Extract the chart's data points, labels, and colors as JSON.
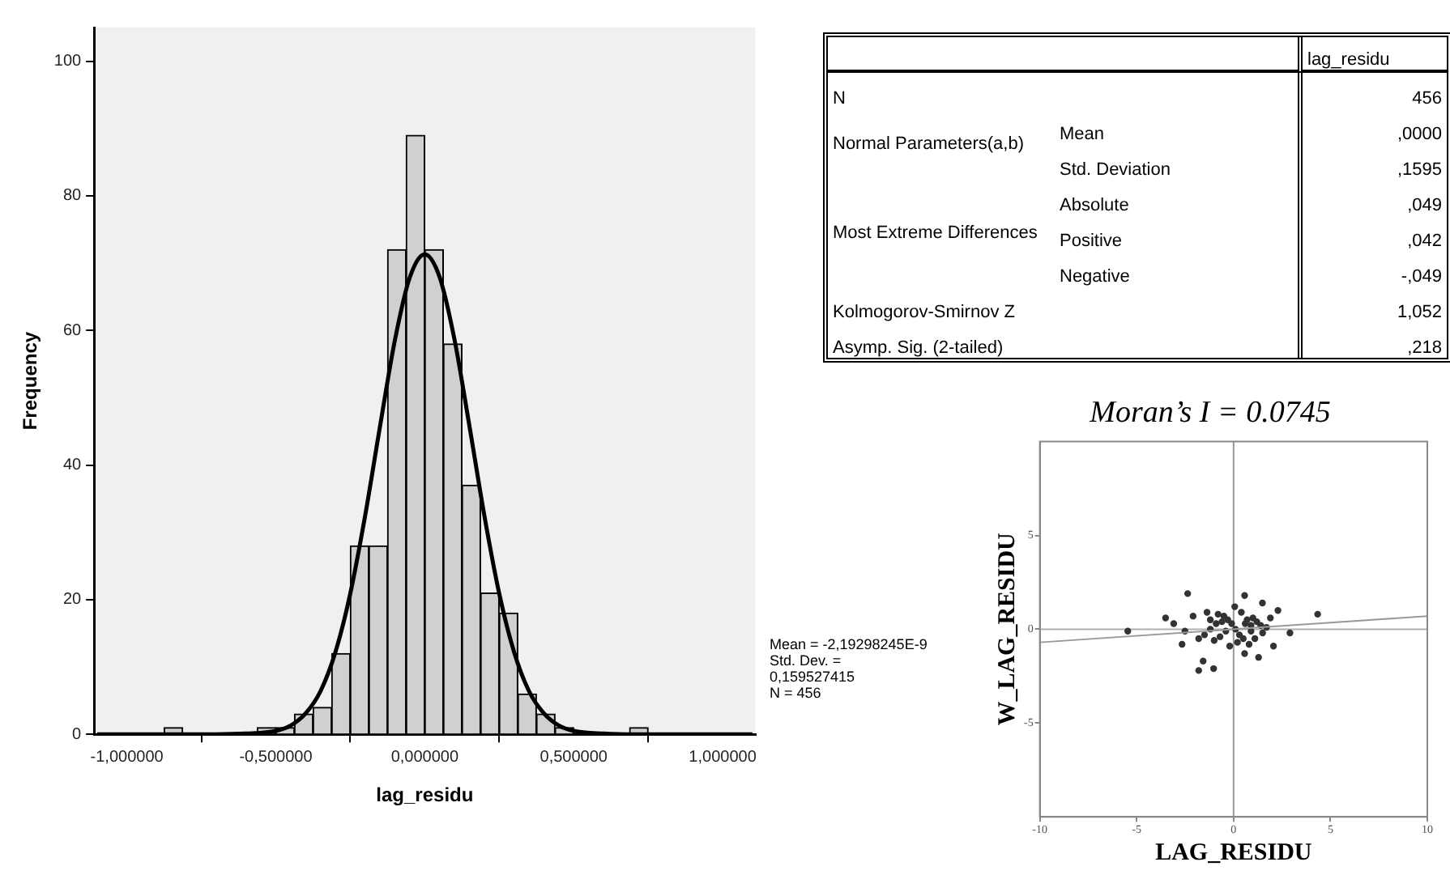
{
  "chart_data": [
    {
      "type": "histogram",
      "xlabel": "lag_residu",
      "ylabel": "Frequency",
      "bins": [
        -0.875,
        -0.8125,
        -0.75,
        -0.6875,
        -0.625,
        -0.5625,
        -0.5,
        -0.4375,
        -0.375,
        -0.3125,
        -0.25,
        -0.1875,
        -0.125,
        -0.0625,
        0,
        0.0625,
        0.125,
        0.1875,
        0.25,
        0.3125,
        0.375,
        0.4375,
        0.5,
        0.5625,
        0.625,
        0.6875,
        0.75
      ],
      "values": [
        1,
        0,
        0,
        0,
        0,
        1,
        1,
        3,
        4,
        12,
        28,
        28,
        72,
        89,
        72,
        58,
        37,
        21,
        18,
        6,
        3,
        1,
        0,
        0,
        0,
        1
      ],
      "color": "#d0d0d0",
      "series": [
        {
          "type": "line",
          "color": "#000000",
          "x": [
            -1.1,
            -0.8,
            -0.7,
            -0.6,
            -0.5,
            -0.45,
            -0.4,
            -0.35,
            -0.3,
            -0.25,
            -0.2,
            -0.15,
            -0.1,
            -0.05,
            0,
            0.05,
            0.1,
            0.15,
            0.2,
            0.25,
            0.3,
            0.35,
            0.4,
            0.45,
            0.5,
            0.6,
            0.7,
            0.8,
            1.1
          ],
          "values": [
            0,
            0,
            0,
            0.1,
            0.5,
            1.3,
            3.1,
            6.4,
            12.2,
            20.9,
            32.5,
            45.8,
            58.6,
            67.9,
            71.3,
            67.9,
            58.6,
            45.8,
            32.5,
            20.9,
            12.2,
            6.4,
            3.1,
            1.3,
            0.5,
            0.1,
            0,
            0,
            0
          ]
        }
      ],
      "xlim": [
        -1.11,
        1.11
      ],
      "xticks": [
        {
          "value": -1,
          "label": "-1,000000"
        },
        {
          "value": -0.5,
          "label": "-0,500000"
        },
        {
          "value": 0,
          "label": "0,000000"
        },
        {
          "value": 0.5,
          "label": "0,500000"
        },
        {
          "value": 1,
          "label": "1,000000"
        }
      ],
      "ylim": [
        0,
        105
      ],
      "yticks": [
        0,
        20,
        40,
        60,
        80,
        100
      ],
      "grid": false,
      "legend": false,
      "annotations": [
        "Mean = -2,19298245E-9",
        "Std. Dev. =",
        "0,159527415",
        "N = 456"
      ]
    },
    {
      "type": "other",
      "annotations": [
        "lag_residu",
        "N",
        "456",
        "Normal Parameters(a,b)",
        "Mean",
        ",0000",
        "Std. Deviation",
        ",1595",
        "Most Extreme Differences",
        "Absolute",
        ",049",
        "Positive",
        ",042",
        "Negative",
        "-,049",
        "Kolmogorov-Smirnov Z",
        "1,052",
        "Asymp. Sig. (2-tailed)",
        ",218"
      ]
    },
    {
      "type": "scatter",
      "title": "Moran’s I = 0.0745",
      "xlabel": "LAG_RESIDU",
      "ylabel": "W_LAG_RESIDU",
      "series": [
        {
          "type": "scatter",
          "color": "#333333",
          "marker": "circle",
          "x": [
            -5.46,
            -2.37,
            -3.51,
            -3.09,
            4.34,
            0.57,
            1.49,
            2.29,
            2.91,
            -1.8,
            -1.03,
            -1.57,
            1.29,
            0.57,
            2.06,
            -2.66,
            -2.09,
            -1.37,
            0.06,
            -2.51,
            -1.2,
            -0.9,
            -0.3,
            0.6,
            0.9,
            1.2,
            1.5,
            -1.5,
            -1,
            -0.5,
            0.2,
            0.5,
            1,
            1.4,
            -0.8,
            -0.2,
            0.4,
            0.8,
            1.1,
            -1.2,
            -0.7,
            -0.1,
            0.7,
            1.7,
            -1.8,
            1.9,
            0.1,
            -0.4,
            0.9,
            -0.6,
            0.3
          ],
          "values": [
            -0.1,
            1.9,
            0.6,
            0.3,
            0.8,
            1.8,
            1.4,
            1,
            -0.2,
            -2.2,
            -2.1,
            -1.7,
            -1.5,
            -1.3,
            -0.9,
            -0.8,
            0.7,
            0.9,
            1.2,
            -0.1,
            0,
            0.3,
            0.5,
            0.3,
            -0.1,
            0.4,
            -0.2,
            -0.3,
            -0.6,
            0.7,
            -0.7,
            -0.5,
            0.6,
            0.2,
            0.8,
            -0.9,
            0.9,
            -0.8,
            -0.5,
            0.5,
            -0.4,
            0.3,
            0.5,
            0.1,
            -0.5,
            0.6,
            0,
            -0.1,
            0.2,
            0.4,
            -0.3
          ]
        },
        {
          "type": "line",
          "color": "#999999",
          "x": [
            -10,
            10
          ],
          "values": [
            -0.7,
            0.7
          ]
        }
      ],
      "xlim": [
        -10,
        10
      ],
      "xticks": [
        -10,
        -5,
        0,
        5,
        10
      ],
      "ylim": [
        -10,
        10
      ],
      "yticks": [
        -5,
        0,
        5
      ],
      "grid": false,
      "legend": false,
      "ref_lines": [
        {
          "axis": "x",
          "value": 0,
          "color": "#999999"
        },
        {
          "axis": "y",
          "value": 0,
          "color": "#b0b0b0"
        }
      ]
    }
  ]
}
